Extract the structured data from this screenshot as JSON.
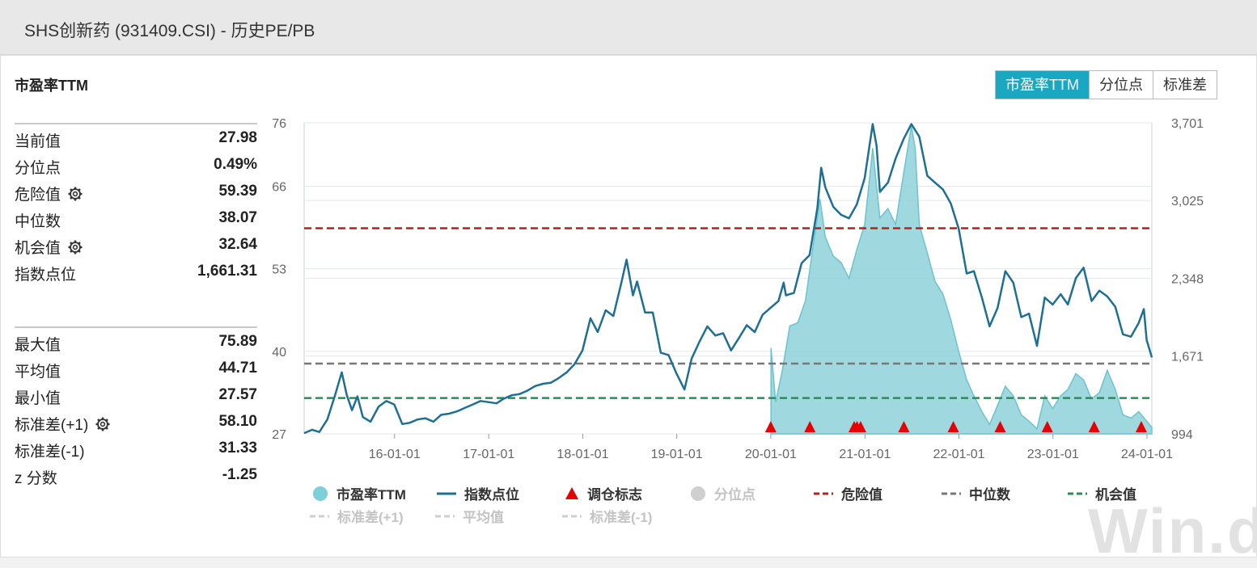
{
  "page": {
    "title": "SHS创新药 (931409.CSI) - 历史PE/PB"
  },
  "section_title": "市盈率TTM",
  "tabs": [
    {
      "label": "市盈率TTM",
      "active": true
    },
    {
      "label": "分位点",
      "active": false
    },
    {
      "label": "标准差",
      "active": false
    }
  ],
  "stats_primary": [
    {
      "label": "当前值",
      "value": "27.98",
      "gear": false
    },
    {
      "label": "分位点",
      "value": "0.49%",
      "gear": false
    },
    {
      "label": "危险值",
      "value": "59.39",
      "gear": true
    },
    {
      "label": "中位数",
      "value": "38.07",
      "gear": false
    },
    {
      "label": "机会值",
      "value": "32.64",
      "gear": true
    },
    {
      "label": "指数点位",
      "value": "1,661.31",
      "gear": false
    }
  ],
  "stats_secondary": [
    {
      "label": "最大值",
      "value": "75.89",
      "gear": false
    },
    {
      "label": "平均值",
      "value": "44.71",
      "gear": false
    },
    {
      "label": "最小值",
      "value": "27.57",
      "gear": false
    },
    {
      "label": "标准差(+1)",
      "value": "58.10",
      "gear": true
    },
    {
      "label": "标准差(-1)",
      "value": "31.33",
      "gear": false
    },
    {
      "label": "z 分数",
      "value": "-1.25",
      "gear": false
    }
  ],
  "legend": [
    {
      "label": "市盈率TTM",
      "symbol": "circle",
      "color": "#7ecfd8",
      "dim": false
    },
    {
      "label": "指数点位",
      "symbol": "line",
      "color": "#1f6e93",
      "dim": false
    },
    {
      "label": "调仓标志",
      "symbol": "triangle",
      "color": "#e60000",
      "dim": false
    },
    {
      "label": "分位点",
      "symbol": "circle",
      "color": "#cfcfcf",
      "dim": true
    },
    {
      "label": "危险值",
      "symbol": "dash",
      "color": "#b22222",
      "dim": false
    },
    {
      "label": "中位数",
      "symbol": "dash",
      "color": "#777777",
      "dim": false
    },
    {
      "label": "机会值",
      "symbol": "dash",
      "color": "#2e8b57",
      "dim": false
    },
    {
      "label": "标准差(+1)",
      "symbol": "dash",
      "color": "#cfcfcf",
      "dim": true
    },
    {
      "label": "平均值",
      "symbol": "dash",
      "color": "#cfcfcf",
      "dim": true
    },
    {
      "label": "标准差(-1)",
      "symbol": "dash",
      "color": "#cfcfcf",
      "dim": true
    }
  ],
  "watermark": "Win.d",
  "chart_data": {
    "type": "line",
    "x_axis": {
      "range": [
        "2015-01-15",
        "2024-01-20"
      ],
      "ticks": [
        "16-01-01",
        "17-01-01",
        "18-01-01",
        "19-01-01",
        "20-01-01",
        "21-01-01",
        "22-01-01",
        "23-01-01",
        "24-01-01"
      ]
    },
    "y_left": {
      "range": [
        27,
        76
      ],
      "ticks": [
        "27",
        "40",
        "53",
        "66",
        "76"
      ]
    },
    "y_right": {
      "range": [
        994,
        3701
      ],
      "ticks": [
        "994",
        "1,671",
        "2,348",
        "3,025",
        "3,701"
      ]
    },
    "reference_lines": [
      {
        "name": "危险值",
        "value": 59.39,
        "color": "#b22222"
      },
      {
        "name": "中位数",
        "value": 38.07,
        "color": "#777777"
      },
      {
        "name": "机会值",
        "value": 32.64,
        "color": "#2e8b57"
      }
    ],
    "series": [
      {
        "name": "指数点位",
        "axis": "right",
        "color": "#1f6e93",
        "points": [
          [
            "2015-01-15",
            1000
          ],
          [
            "2015-02-15",
            1030
          ],
          [
            "2015-03-15",
            1010
          ],
          [
            "2015-04-15",
            1120
          ],
          [
            "2015-05-15",
            1330
          ],
          [
            "2015-06-10",
            1530
          ],
          [
            "2015-06-30",
            1330
          ],
          [
            "2015-07-20",
            1200
          ],
          [
            "2015-08-10",
            1320
          ],
          [
            "2015-08-31",
            1140
          ],
          [
            "2015-09-30",
            1100
          ],
          [
            "2015-10-31",
            1230
          ],
          [
            "2015-11-30",
            1280
          ],
          [
            "2015-12-31",
            1250
          ],
          [
            "2016-01-31",
            1080
          ],
          [
            "2016-02-29",
            1090
          ],
          [
            "2016-03-31",
            1120
          ],
          [
            "2016-04-30",
            1130
          ],
          [
            "2016-05-31",
            1100
          ],
          [
            "2016-06-30",
            1160
          ],
          [
            "2016-07-31",
            1170
          ],
          [
            "2016-08-31",
            1190
          ],
          [
            "2016-09-30",
            1220
          ],
          [
            "2016-10-31",
            1250
          ],
          [
            "2016-11-30",
            1280
          ],
          [
            "2016-12-31",
            1270
          ],
          [
            "2017-01-31",
            1260
          ],
          [
            "2017-02-28",
            1300
          ],
          [
            "2017-03-31",
            1330
          ],
          [
            "2017-04-30",
            1340
          ],
          [
            "2017-05-31",
            1370
          ],
          [
            "2017-06-30",
            1410
          ],
          [
            "2017-07-31",
            1430
          ],
          [
            "2017-08-31",
            1440
          ],
          [
            "2017-09-30",
            1480
          ],
          [
            "2017-10-31",
            1530
          ],
          [
            "2017-11-30",
            1600
          ],
          [
            "2017-12-31",
            1720
          ],
          [
            "2018-01-31",
            2000
          ],
          [
            "2018-02-28",
            1880
          ],
          [
            "2018-03-31",
            2070
          ],
          [
            "2018-04-30",
            2020
          ],
          [
            "2018-05-31",
            2310
          ],
          [
            "2018-06-20",
            2510
          ],
          [
            "2018-07-15",
            2200
          ],
          [
            "2018-07-31",
            2320
          ],
          [
            "2018-08-31",
            2050
          ],
          [
            "2018-09-30",
            2050
          ],
          [
            "2018-10-31",
            1700
          ],
          [
            "2018-11-30",
            1680
          ],
          [
            "2018-12-31",
            1520
          ],
          [
            "2019-01-31",
            1380
          ],
          [
            "2019-02-28",
            1650
          ],
          [
            "2019-03-31",
            1800
          ],
          [
            "2019-04-30",
            1930
          ],
          [
            "2019-05-31",
            1850
          ],
          [
            "2019-06-30",
            1870
          ],
          [
            "2019-07-31",
            1720
          ],
          [
            "2019-08-31",
            1830
          ],
          [
            "2019-09-30",
            1940
          ],
          [
            "2019-10-31",
            1880
          ],
          [
            "2019-11-30",
            2030
          ],
          [
            "2019-12-31",
            2090
          ],
          [
            "2020-01-31",
            2150
          ],
          [
            "2020-02-20",
            2310
          ],
          [
            "2020-02-29",
            2200
          ],
          [
            "2020-03-31",
            2220
          ],
          [
            "2020-04-30",
            2480
          ],
          [
            "2020-05-31",
            2550
          ],
          [
            "2020-06-30",
            2960
          ],
          [
            "2020-07-15",
            3310
          ],
          [
            "2020-07-31",
            3140
          ],
          [
            "2020-08-31",
            2970
          ],
          [
            "2020-09-30",
            2900
          ],
          [
            "2020-10-31",
            2870
          ],
          [
            "2020-11-30",
            2990
          ],
          [
            "2020-12-31",
            3220
          ],
          [
            "2021-01-31",
            3690
          ],
          [
            "2021-02-15",
            3500
          ],
          [
            "2021-02-28",
            3100
          ],
          [
            "2021-03-31",
            3180
          ],
          [
            "2021-04-30",
            3390
          ],
          [
            "2021-05-31",
            3560
          ],
          [
            "2021-06-30",
            3690
          ],
          [
            "2021-07-31",
            3580
          ],
          [
            "2021-08-31",
            3240
          ],
          [
            "2021-09-30",
            3180
          ],
          [
            "2021-10-31",
            3120
          ],
          [
            "2021-11-30",
            3000
          ],
          [
            "2021-12-31",
            2780
          ],
          [
            "2022-01-31",
            2390
          ],
          [
            "2022-02-28",
            2410
          ],
          [
            "2022-03-31",
            2180
          ],
          [
            "2022-04-30",
            1930
          ],
          [
            "2022-05-31",
            2090
          ],
          [
            "2022-06-30",
            2410
          ],
          [
            "2022-07-31",
            2310
          ],
          [
            "2022-08-31",
            2010
          ],
          [
            "2022-09-30",
            2040
          ],
          [
            "2022-10-31",
            1760
          ],
          [
            "2022-11-30",
            2180
          ],
          [
            "2022-12-31",
            2120
          ],
          [
            "2023-01-31",
            2210
          ],
          [
            "2023-02-28",
            2120
          ],
          [
            "2023-03-31",
            2350
          ],
          [
            "2023-04-30",
            2440
          ],
          [
            "2023-05-31",
            2150
          ],
          [
            "2023-06-30",
            2240
          ],
          [
            "2023-07-31",
            2190
          ],
          [
            "2023-08-31",
            2100
          ],
          [
            "2023-09-30",
            1860
          ],
          [
            "2023-10-31",
            1840
          ],
          [
            "2023-11-30",
            1960
          ],
          [
            "2023-12-20",
            2080
          ],
          [
            "2023-12-31",
            1810
          ],
          [
            "2024-01-20",
            1660
          ]
        ]
      },
      {
        "name": "市盈率TTM",
        "axis": "left",
        "color": "#8fd1db",
        "points": [
          [
            "2020-01-02",
            40.5
          ],
          [
            "2020-01-20",
            32.0
          ],
          [
            "2020-02-15",
            37.0
          ],
          [
            "2020-03-15",
            44.0
          ],
          [
            "2020-04-15",
            44.5
          ],
          [
            "2020-05-15",
            48.0
          ],
          [
            "2020-06-15",
            57.0
          ],
          [
            "2020-07-10",
            64.0
          ],
          [
            "2020-07-31",
            58.0
          ],
          [
            "2020-08-31",
            55.0
          ],
          [
            "2020-09-30",
            54.0
          ],
          [
            "2020-10-31",
            51.5
          ],
          [
            "2020-11-30",
            56.0
          ],
          [
            "2020-12-31",
            60.0
          ],
          [
            "2021-01-31",
            72.0
          ],
          [
            "2021-02-28",
            61.0
          ],
          [
            "2021-03-31",
            62.5
          ],
          [
            "2021-04-30",
            60.0
          ],
          [
            "2021-05-31",
            68.0
          ],
          [
            "2021-06-30",
            75.5
          ],
          [
            "2021-07-15",
            72.0
          ],
          [
            "2021-07-31",
            60.0
          ],
          [
            "2021-08-31",
            55.5
          ],
          [
            "2021-09-30",
            51.0
          ],
          [
            "2021-10-31",
            49.0
          ],
          [
            "2021-11-30",
            45.0
          ],
          [
            "2021-12-31",
            40.0
          ],
          [
            "2022-01-31",
            35.5
          ],
          [
            "2022-02-28",
            33.0
          ],
          [
            "2022-03-31",
            30.5
          ],
          [
            "2022-04-30",
            28.5
          ],
          [
            "2022-05-31",
            31.5
          ],
          [
            "2022-06-30",
            34.5
          ],
          [
            "2022-07-31",
            33.0
          ],
          [
            "2022-08-31",
            30.0
          ],
          [
            "2022-09-30",
            29.0
          ],
          [
            "2022-10-31",
            27.8
          ],
          [
            "2022-11-30",
            33.0
          ],
          [
            "2022-12-31",
            31.0
          ],
          [
            "2023-01-31",
            33.0
          ],
          [
            "2023-02-28",
            34.0
          ],
          [
            "2023-03-31",
            36.5
          ],
          [
            "2023-04-30",
            35.5
          ],
          [
            "2023-05-31",
            32.5
          ],
          [
            "2023-06-30",
            33.5
          ],
          [
            "2023-07-31",
            37.0
          ],
          [
            "2023-08-31",
            34.0
          ],
          [
            "2023-09-30",
            30.0
          ],
          [
            "2023-10-31",
            29.5
          ],
          [
            "2023-11-30",
            30.5
          ],
          [
            "2023-12-31",
            29.0
          ],
          [
            "2024-01-20",
            28.0
          ]
        ]
      }
    ],
    "rebalance_markers": [
      "2020-01-01",
      "2020-06-01",
      "2020-11-20",
      "2020-12-01",
      "2020-12-15",
      "2021-06-01",
      "2021-12-10",
      "2022-06-10",
      "2022-12-10",
      "2023-06-10",
      "2023-12-10"
    ]
  }
}
